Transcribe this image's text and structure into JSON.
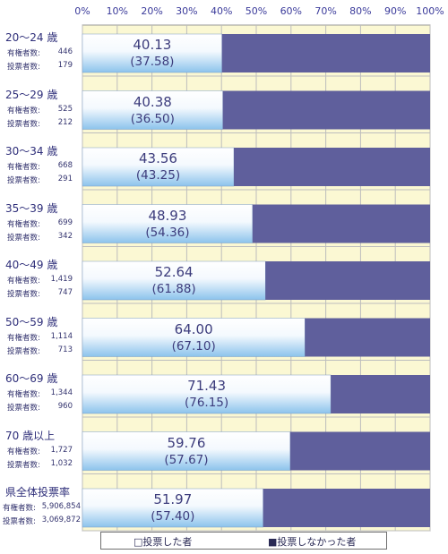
{
  "chart_data": {
    "type": "bar",
    "orientation": "horizontal",
    "stacked_percent": true,
    "xlim": [
      0,
      100
    ],
    "x_ticks": [
      "0%",
      "10%",
      "20%",
      "30%",
      "40%",
      "50%",
      "60%",
      "70%",
      "80%",
      "90%",
      "100%"
    ],
    "grid": true,
    "categories": [
      "20～24 歳",
      "25～29 歳",
      "30～34 歳",
      "35～39 歳",
      "40～49 歳",
      "50～59 歳",
      "60～69 歳",
      "70 歳以上",
      "県全体投票率"
    ],
    "stats": [
      {
        "label1": "有権者数:",
        "value1": "446",
        "label2": "投票者数:",
        "value2": "179"
      },
      {
        "label1": "有権者数:",
        "value1": "525",
        "label2": "投票者数:",
        "value2": "212"
      },
      {
        "label1": "有権者数:",
        "value1": "668",
        "label2": "投票者数:",
        "value2": "291"
      },
      {
        "label1": "有権者数:",
        "value1": "699",
        "label2": "投票者数:",
        "value2": "342"
      },
      {
        "label1": "有権者数:",
        "value1": "1,419",
        "label2": "投票者数:",
        "value2": "747"
      },
      {
        "label1": "有権者数:",
        "value1": "1,114",
        "label2": "投票者数:",
        "value2": "713"
      },
      {
        "label1": "有権者数:",
        "value1": "1,344",
        "label2": "投票者数:",
        "value2": "960"
      },
      {
        "label1": "有権者数:",
        "value1": "1,727",
        "label2": "投票者数:",
        "value2": "1,032"
      },
      {
        "label1": "有権者数:",
        "value1": "5,906,854",
        "label2": "投票者数:",
        "value2": "3,069,872"
      }
    ],
    "series": [
      {
        "name": "投票した者",
        "values": [
          40.13,
          40.38,
          43.56,
          48.93,
          52.64,
          64.0,
          71.43,
          59.76,
          51.97
        ]
      },
      {
        "name": "投票しなかった者",
        "values": [
          59.87,
          59.62,
          56.44,
          51.07,
          47.36,
          36.0,
          28.57,
          40.24,
          48.03
        ]
      }
    ],
    "value_labels": [
      "40.13",
      "40.38",
      "43.56",
      "48.93",
      "52.64",
      "64.00",
      "71.43",
      "59.76",
      "51.97"
    ],
    "previous_labels": [
      "(37.58)",
      "(36.50)",
      "(43.25)",
      "(54.36)",
      "(61.88)",
      "(67.10)",
      "(76.15)",
      "(57.67)",
      "(57.40)"
    ],
    "legend": {
      "placement": "bottom",
      "items": [
        "□投票した者",
        "■投票しなかった者"
      ]
    },
    "colors": {
      "voted_light": "#ffffff",
      "voted_dark": "#8cc3ec",
      "not_voted": "#5f5f9c",
      "plot_bg": "#fbf8d3",
      "grid": "#bdbdbd"
    }
  }
}
